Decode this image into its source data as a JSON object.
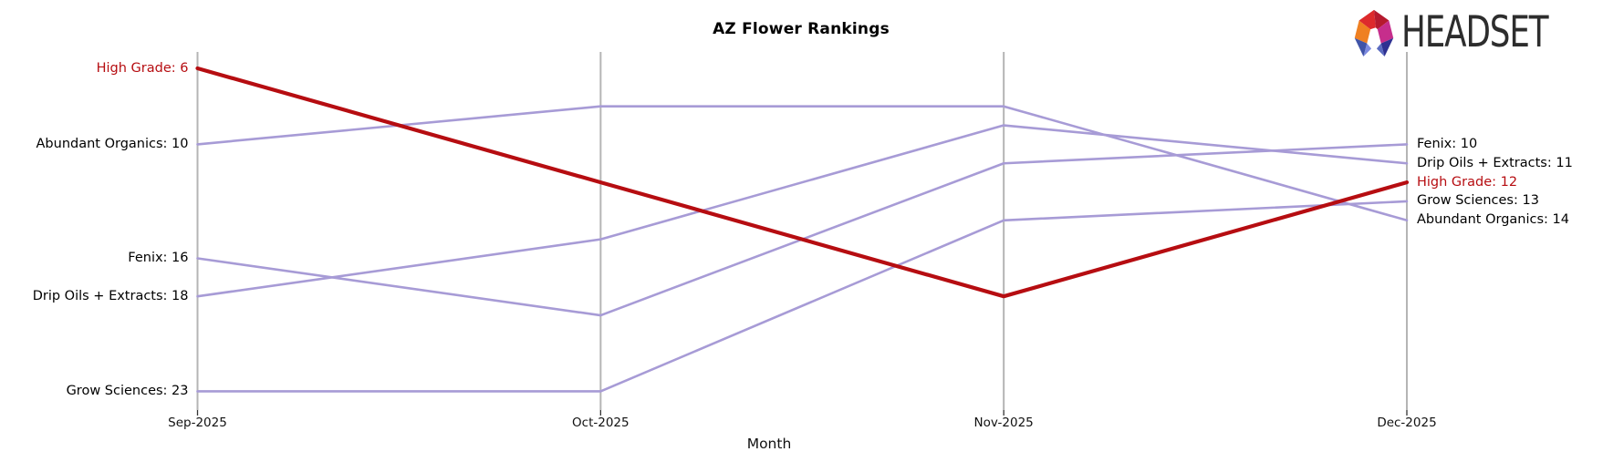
{
  "title": "AZ Flower Rankings",
  "xlabel": "Month",
  "logo": {
    "text": "HEADSET"
  },
  "colors": {
    "axis": "#b5b5b5",
    "tick": "#333333",
    "text": "#000000",
    "highlight_red": "#b60d11",
    "line_purple": "#a79bd6"
  },
  "chart_data": {
    "type": "line",
    "subtype": "bump-ranking",
    "title": "AZ Flower Rankings",
    "xlabel": "Month",
    "x": [
      "Sep-2025",
      "Oct-2025",
      "Nov-2025",
      "Dec-2025"
    ],
    "y_meaning": "rank (lower is better)",
    "ylim": [
      6,
      23
    ],
    "grid": false,
    "legend": "inline-edge-labels",
    "series": [
      {
        "name": "High Grade",
        "values": [
          6,
          12,
          18,
          12
        ],
        "color": "#b60d11",
        "emphasized": true,
        "line_width": 4.2
      },
      {
        "name": "Abundant Organics",
        "values": [
          10,
          8,
          8,
          14
        ],
        "color": "#a79bd6",
        "emphasized": false,
        "line_width": 2.6
      },
      {
        "name": "Fenix",
        "values": [
          16,
          19,
          11,
          10
        ],
        "color": "#a79bd6",
        "emphasized": false,
        "line_width": 2.6
      },
      {
        "name": "Drip Oils + Extracts",
        "values": [
          18,
          15,
          9,
          11
        ],
        "color": "#a79bd6",
        "emphasized": false,
        "line_width": 2.6
      },
      {
        "name": "Grow Sciences",
        "values": [
          23,
          23,
          14,
          13
        ],
        "color": "#a79bd6",
        "emphasized": false,
        "line_width": 2.6
      }
    ],
    "left_labels": [
      {
        "text": "High Grade: 6",
        "rank": 6,
        "color": "#b60d11"
      },
      {
        "text": "Abundant Organics: 10",
        "rank": 10,
        "color": "#000000"
      },
      {
        "text": "Fenix: 16",
        "rank": 16,
        "color": "#000000"
      },
      {
        "text": "Drip Oils + Extracts: 18",
        "rank": 18,
        "color": "#000000"
      },
      {
        "text": "Grow Sciences: 23",
        "rank": 23,
        "color": "#000000"
      }
    ],
    "right_labels": [
      {
        "text": "Fenix: 10",
        "rank": 10,
        "color": "#000000"
      },
      {
        "text": "Drip Oils + Extracts: 11",
        "rank": 11,
        "color": "#000000"
      },
      {
        "text": "High Grade: 12",
        "rank": 12,
        "color": "#b60d11"
      },
      {
        "text": "Grow Sciences: 13",
        "rank": 13,
        "color": "#000000"
      },
      {
        "text": "Abundant Organics: 14",
        "rank": 14,
        "color": "#000000"
      }
    ]
  }
}
